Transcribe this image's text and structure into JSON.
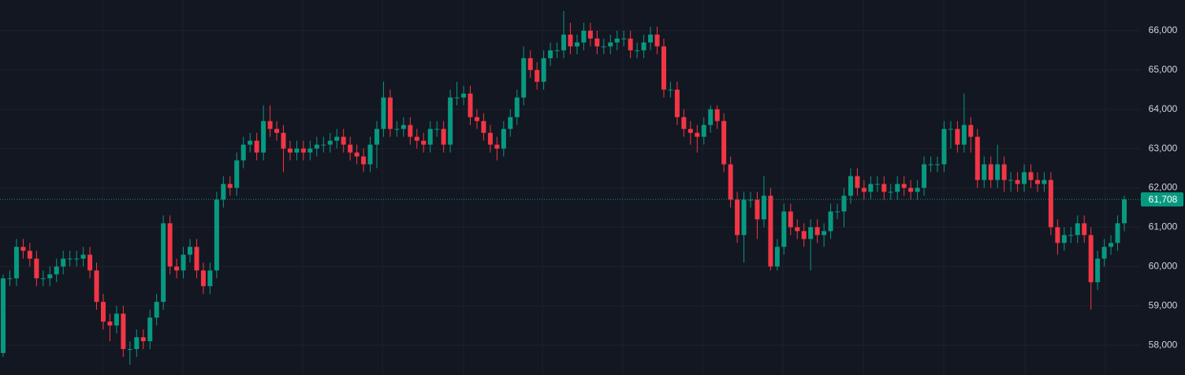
{
  "chart_data": {
    "type": "candlestick",
    "up_color": "#089981",
    "down_color": "#f23645",
    "grid": true,
    "ylim": [
      57240,
      66780
    ],
    "yticks": [
      {
        "value": 58000,
        "label": "58,000"
      },
      {
        "value": 59000,
        "label": "59,000"
      },
      {
        "value": 60000,
        "label": "60,000"
      },
      {
        "value": 61000,
        "label": "61,000"
      },
      {
        "value": 62000,
        "label": "62,000"
      },
      {
        "value": 63000,
        "label": "63,000"
      },
      {
        "value": 64000,
        "label": "64,000"
      },
      {
        "value": 65000,
        "label": "65,000"
      },
      {
        "value": 66000,
        "label": "66,000"
      }
    ],
    "last_price": {
      "value": 61708,
      "label": "61,708"
    },
    "open": [
      57800,
      59700,
      59700,
      60500,
      60400,
      60200,
      59700,
      59700,
      59800,
      60000,
      60200,
      60200,
      60200,
      60300,
      59900,
      59100,
      58600,
      58500,
      58800,
      57900,
      57900,
      58200,
      58100,
      58700,
      59100,
      61100,
      60000,
      59900,
      60300,
      60500,
      59900,
      59500,
      59900,
      61700,
      62100,
      62000,
      62700,
      63100,
      63200,
      62900,
      63700,
      63500,
      63400,
      63000,
      62900,
      63000,
      62900,
      63000,
      63100,
      63100,
      63200,
      63300,
      63100,
      62900,
      62800,
      62600,
      63100,
      63500,
      64300,
      63500,
      63500,
      63600,
      63300,
      63200,
      63100,
      63500,
      63500,
      63100,
      64300,
      64300,
      64400,
      63800,
      63700,
      63400,
      63100,
      63000,
      63500,
      63800,
      64300,
      65300,
      65000,
      64700,
      65300,
      65500,
      65500,
      65900,
      65600,
      65700,
      66000,
      65800,
      65600,
      65600,
      65700,
      65800,
      65800,
      65500,
      65500,
      65700,
      65900,
      65600,
      64500,
      64500,
      63800,
      63500,
      63400,
      63300,
      63600,
      64000,
      63700,
      62600,
      61700,
      60800,
      61700,
      61700,
      61200,
      61800,
      60000,
      60500,
      61400,
      61000,
      60900,
      60700,
      61000,
      60800,
      60900,
      61400,
      61400,
      61800,
      62300,
      62000,
      61900,
      62100,
      62100,
      61900,
      61900,
      62100,
      62000,
      61900,
      62000,
      62600,
      62600,
      62600,
      63500,
      63500,
      63100,
      63600,
      63300,
      62200,
      62600,
      62200,
      62600,
      62200,
      62200,
      62100,
      62400,
      62200,
      62100,
      62200,
      61000,
      60600,
      60800,
      60800,
      61100,
      60800,
      59600,
      60200,
      60500,
      60600,
      61100
    ],
    "high": [
      59800,
      59900,
      60700,
      60700,
      60600,
      60400,
      59900,
      60000,
      60200,
      60400,
      60400,
      60400,
      60500,
      60500,
      60100,
      59300,
      58800,
      59000,
      59000,
      58100,
      58400,
      58400,
      58900,
      59300,
      61300,
      61300,
      60200,
      60500,
      60700,
      60700,
      60100,
      60100,
      61900,
      62300,
      62300,
      62900,
      63300,
      63400,
      63400,
      64100,
      64100,
      63700,
      63600,
      63200,
      63200,
      63200,
      63200,
      63300,
      63300,
      63400,
      63500,
      63500,
      63300,
      63100,
      63000,
      63300,
      63700,
      64700,
      64500,
      63700,
      63800,
      63800,
      63500,
      63400,
      63700,
      63700,
      63700,
      64500,
      64700,
      64600,
      64600,
      64000,
      63900,
      63600,
      63300,
      63700,
      64000,
      64500,
      65600,
      65500,
      65200,
      65500,
      65700,
      65700,
      66500,
      66200,
      65900,
      66200,
      66200,
      66000,
      65800,
      65900,
      66000,
      66000,
      66000,
      65700,
      65900,
      66100,
      66100,
      65800,
      64700,
      64700,
      64000,
      63700,
      63600,
      63800,
      64100,
      64100,
      63900,
      62800,
      61900,
      61900,
      61900,
      61900,
      62300,
      62000,
      60700,
      61600,
      61600,
      61200,
      61100,
      61200,
      61200,
      61100,
      61600,
      61600,
      62000,
      62500,
      62500,
      62200,
      62300,
      62300,
      62300,
      62100,
      62300,
      62300,
      62200,
      62200,
      62800,
      62800,
      62800,
      63700,
      63700,
      63700,
      64400,
      63800,
      63500,
      62800,
      62800,
      63100,
      62800,
      62400,
      62400,
      62600,
      62600,
      62400,
      62400,
      62400,
      61200,
      61000,
      61000,
      61300,
      61300,
      61000,
      60400,
      60700,
      60800,
      61300,
      61800
    ],
    "low": [
      57700,
      59500,
      59500,
      60200,
      60000,
      59500,
      59500,
      59500,
      59600,
      59800,
      60000,
      60000,
      60000,
      59700,
      58900,
      58400,
      58100,
      58300,
      57700,
      57500,
      57700,
      57900,
      57900,
      58500,
      58900,
      59800,
      59700,
      59700,
      60100,
      59700,
      59300,
      59300,
      59700,
      61500,
      61800,
      61800,
      62500,
      62900,
      62700,
      62700,
      63300,
      63200,
      62400,
      62700,
      62700,
      62700,
      62700,
      62800,
      62900,
      62900,
      63000,
      62900,
      62700,
      62600,
      62400,
      62400,
      62500,
      63300,
      63300,
      63300,
      63300,
      63100,
      63000,
      62900,
      62900,
      63300,
      62900,
      62900,
      64100,
      64100,
      63600,
      63500,
      63200,
      62900,
      62700,
      62800,
      63300,
      63600,
      64100,
      64800,
      64500,
      64500,
      65100,
      65300,
      65300,
      65400,
      65400,
      65500,
      65600,
      65400,
      65400,
      65400,
      65500,
      65600,
      65300,
      65300,
      65300,
      65500,
      65400,
      64300,
      64300,
      63600,
      63300,
      63100,
      62900,
      63100,
      63400,
      63500,
      62400,
      61500,
      60600,
      60100,
      61500,
      60700,
      61000,
      59900,
      59900,
      60300,
      60800,
      60700,
      60500,
      59900,
      60600,
      60500,
      60700,
      61200,
      61000,
      61600,
      61800,
      61700,
      61700,
      61900,
      61700,
      61700,
      61700,
      61800,
      61700,
      61700,
      61800,
      62400,
      62400,
      62400,
      63000,
      62900,
      62900,
      62900,
      62000,
      62000,
      62000,
      62000,
      61900,
      61900,
      61900,
      61900,
      62000,
      61900,
      61900,
      60800,
      60300,
      60400,
      60600,
      60600,
      60600,
      58900,
      59400,
      60000,
      60300,
      60400,
      60900
    ],
    "close": [
      59700,
      59700,
      60500,
      60400,
      60200,
      59700,
      59700,
      59800,
      60000,
      60200,
      60200,
      60200,
      60300,
      59900,
      59100,
      58600,
      58500,
      58800,
      57900,
      57900,
      58200,
      58100,
      58700,
      59100,
      61100,
      60000,
      59900,
      60300,
      60500,
      59900,
      59500,
      59900,
      61700,
      62100,
      62000,
      62700,
      63100,
      63200,
      62900,
      63700,
      63500,
      63400,
      63000,
      62900,
      63000,
      62900,
      63000,
      63100,
      63100,
      63200,
      63300,
      63100,
      62900,
      62800,
      62600,
      63100,
      63500,
      64300,
      63500,
      63500,
      63600,
      63300,
      63200,
      63100,
      63500,
      63500,
      63100,
      64300,
      64300,
      64400,
      63800,
      63700,
      63400,
      63100,
      63000,
      63500,
      63800,
      64300,
      65300,
      65000,
      64700,
      65300,
      65500,
      65500,
      65900,
      65600,
      65700,
      66000,
      65800,
      65600,
      65600,
      65700,
      65800,
      65800,
      65500,
      65500,
      65700,
      65900,
      65600,
      64500,
      64500,
      63800,
      63500,
      63400,
      63300,
      63600,
      64000,
      63700,
      62600,
      61700,
      60800,
      61700,
      61700,
      61200,
      61800,
      60000,
      60500,
      61400,
      61000,
      60900,
      60700,
      61000,
      60800,
      60900,
      61400,
      61400,
      61800,
      62300,
      62000,
      61900,
      62100,
      62100,
      61900,
      61900,
      62100,
      62000,
      61900,
      62000,
      62600,
      62600,
      62600,
      63500,
      63500,
      63100,
      63600,
      63300,
      62200,
      62600,
      62200,
      62600,
      62200,
      62200,
      62100,
      62400,
      62200,
      62100,
      62200,
      61000,
      60600,
      60800,
      60800,
      61100,
      60800,
      59600,
      60200,
      60500,
      60600,
      61100,
      61708
    ]
  }
}
